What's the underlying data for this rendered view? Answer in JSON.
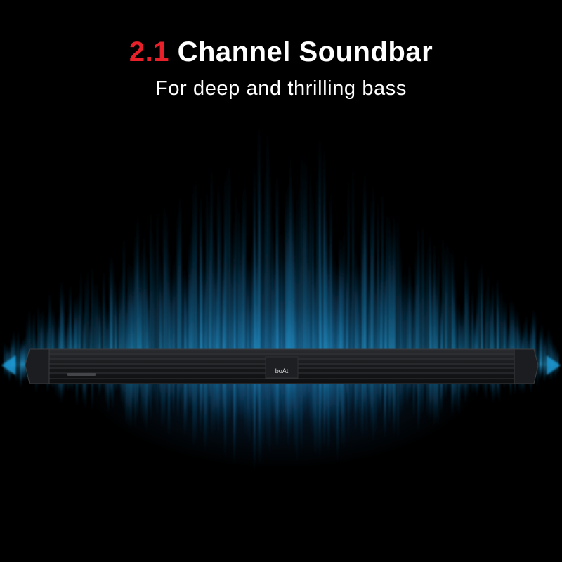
{
  "headline": {
    "accent": "2.1",
    "rest": "Channel Soundbar"
  },
  "subtitle": "For deep and thrilling bass",
  "logo_text": "boAt",
  "colors": {
    "background": "#000000",
    "accent_red": "#e8202a",
    "wave_blue": "#1fa3e0",
    "soundbar_body": "#1a1b1d"
  }
}
